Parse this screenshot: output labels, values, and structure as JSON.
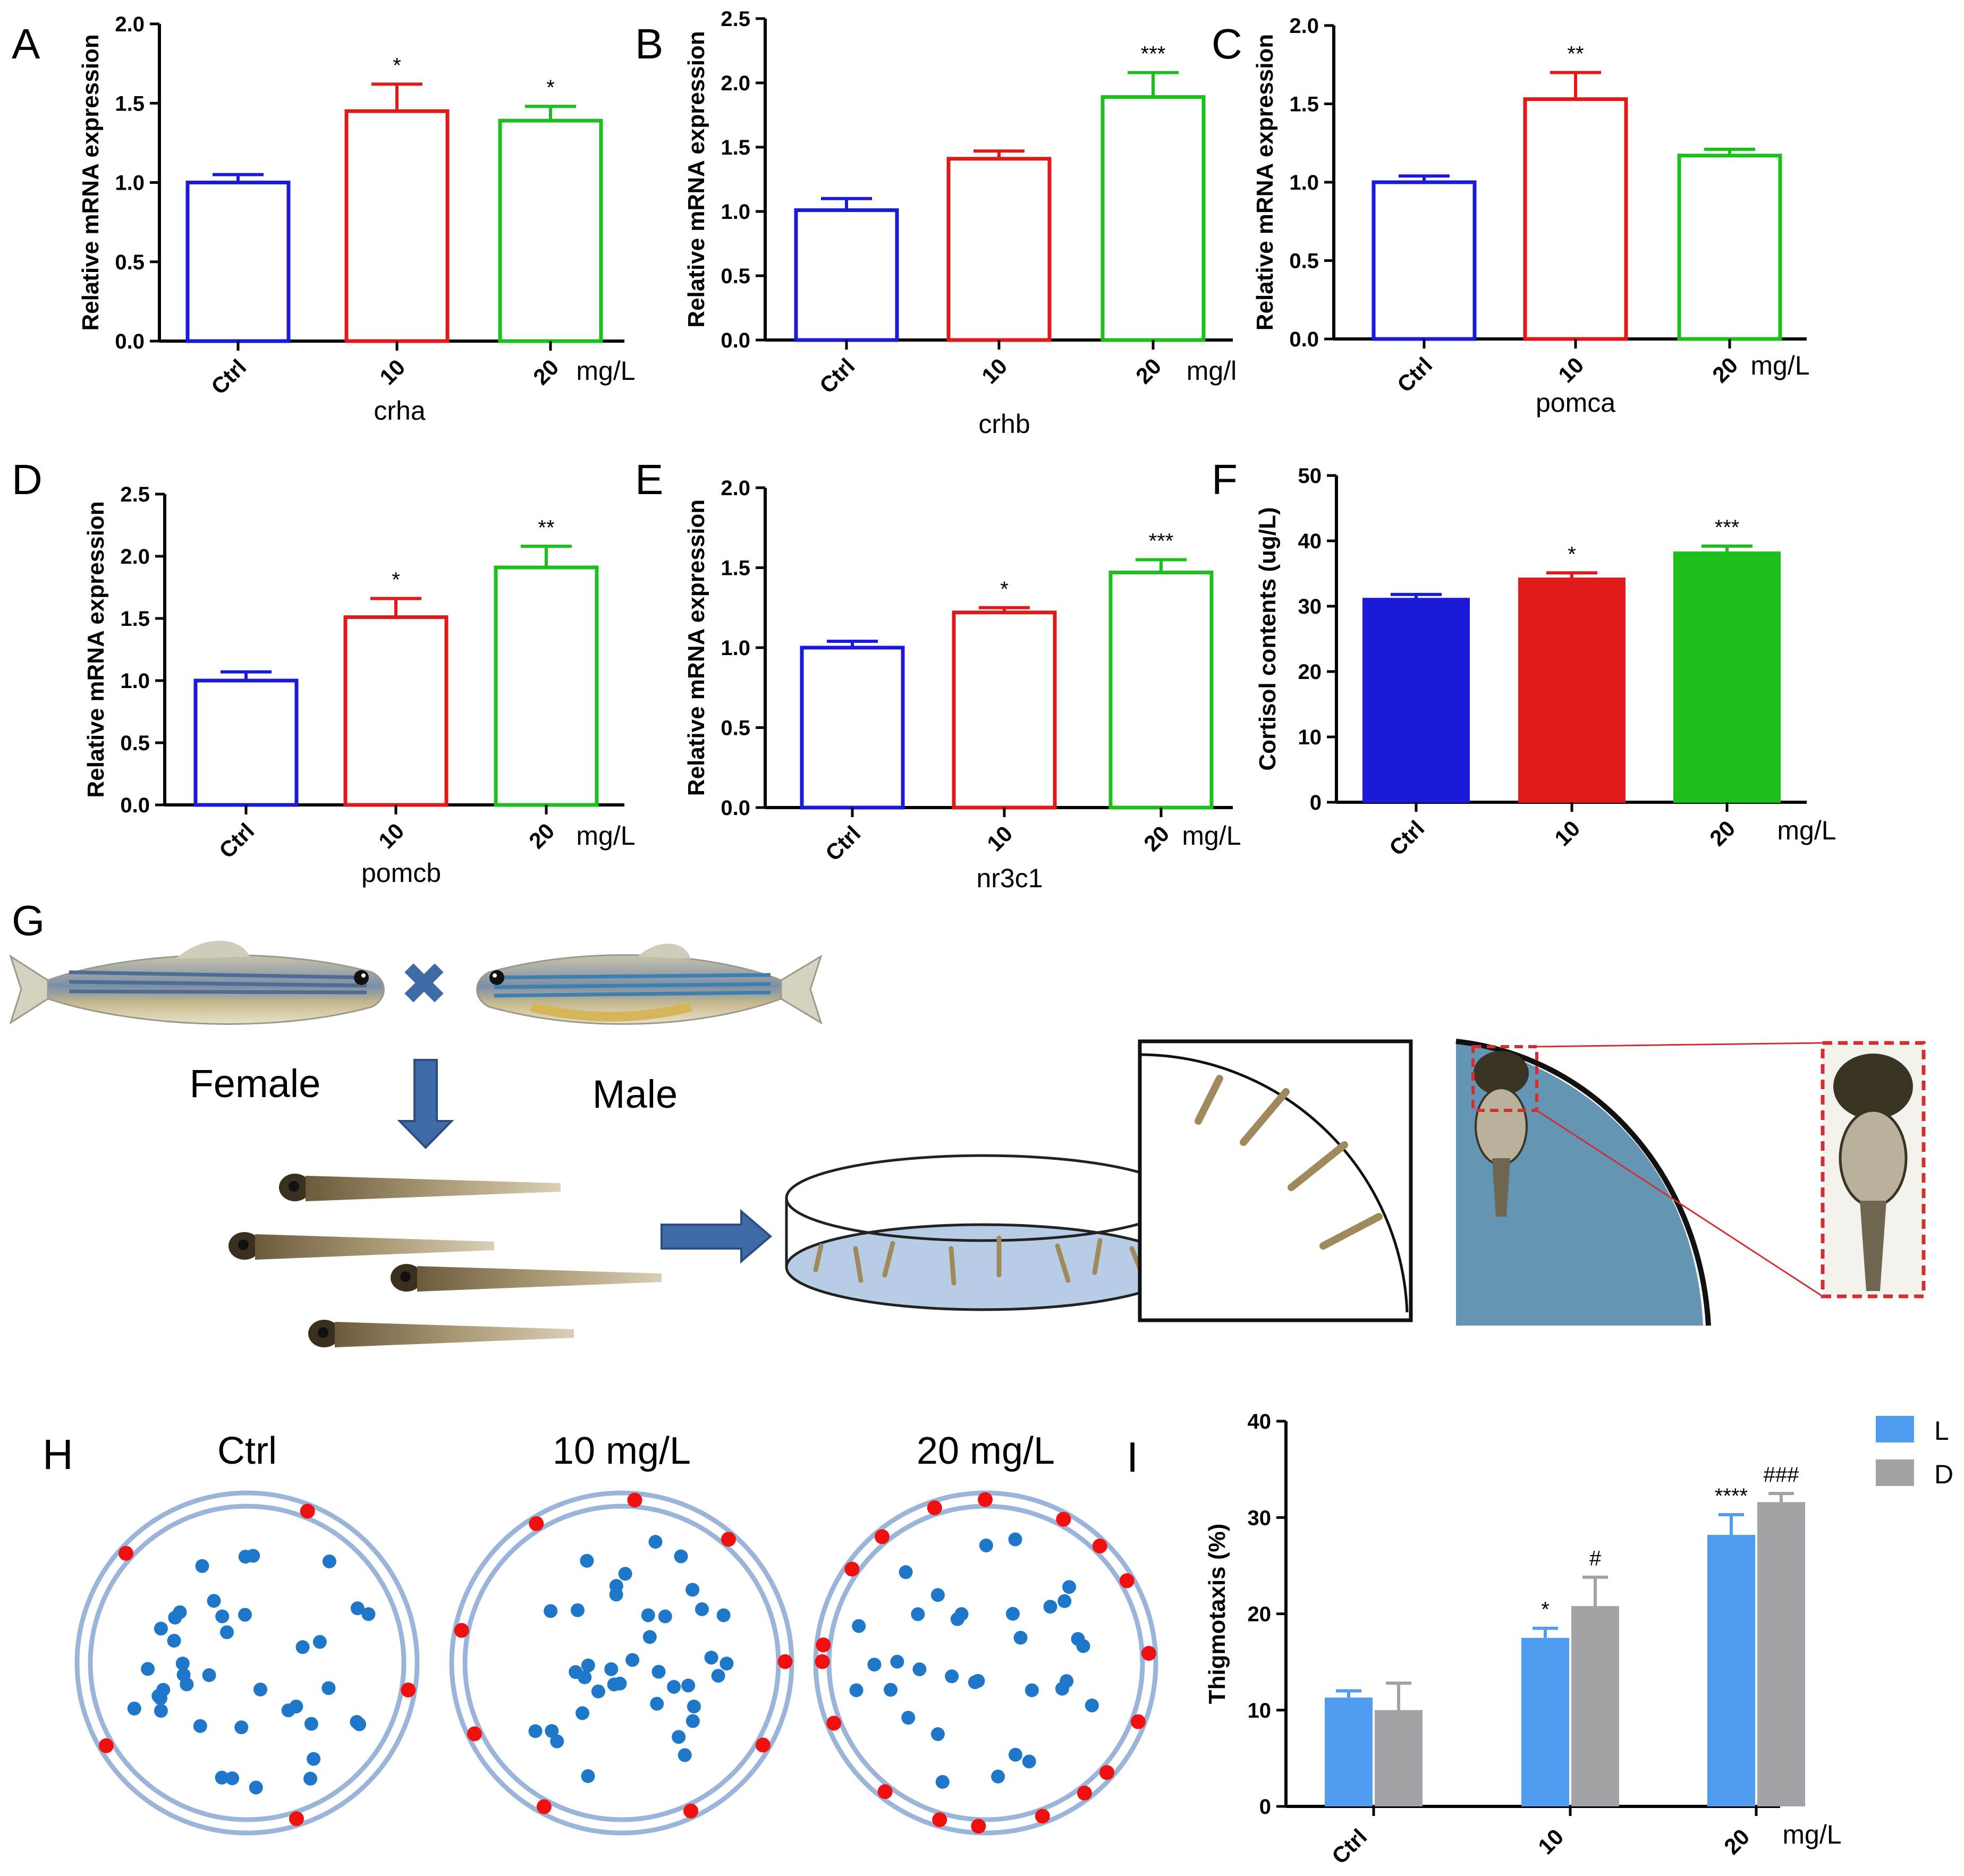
{
  "colors": {
    "ctrl": "#1a1ad8",
    "dose10": "#e01a1a",
    "dose20": "#1cbf1c",
    "light": "#4f9df0",
    "dark": "#a2a2a7",
    "dish": "#9ab5d9",
    "blue_dot": "#1f77c9",
    "red_dot": "#f01010",
    "arrow": "#3e6ba8",
    "axis": "#000000"
  },
  "chart_data": [
    {
      "panel": "A",
      "type": "bar",
      "style": "outline",
      "gene": "crha",
      "ylabel": "Relative mRNA expression",
      "unit": "mg/L",
      "categories": [
        "Ctrl",
        "10",
        "20"
      ],
      "values": [
        1.0,
        1.45,
        1.39
      ],
      "errors": [
        0.05,
        0.17,
        0.09
      ],
      "sig": [
        "",
        "*",
        "*"
      ],
      "ylim": [
        0,
        2.0
      ],
      "yticks": [
        "0.0",
        "0.5",
        "1.0",
        "1.5",
        "2.0"
      ]
    },
    {
      "panel": "B",
      "type": "bar",
      "style": "outline",
      "gene": "crhb",
      "ylabel": "Relative mRNA expression",
      "unit": "mg/l",
      "categories": [
        "Ctrl",
        "10",
        "20"
      ],
      "values": [
        1.01,
        1.41,
        1.89
      ],
      "errors": [
        0.09,
        0.06,
        0.19
      ],
      "sig": [
        "",
        "",
        "***"
      ],
      "ylim": [
        0,
        2.5
      ],
      "yticks": [
        "0.0",
        "0.5",
        "1.0",
        "1.5",
        "2.0",
        "2.5"
      ]
    },
    {
      "panel": "C",
      "type": "bar",
      "style": "outline",
      "gene": "pomca",
      "ylabel": "Relative mRNA expression",
      "unit": "mg/L",
      "categories": [
        "Ctrl",
        "10",
        "20"
      ],
      "values": [
        1.0,
        1.53,
        1.17
      ],
      "errors": [
        0.04,
        0.17,
        0.04
      ],
      "sig": [
        "",
        "**",
        ""
      ],
      "ylim": [
        0,
        2.0
      ],
      "yticks": [
        "0.0",
        "0.5",
        "1.0",
        "1.5",
        "2.0"
      ]
    },
    {
      "panel": "D",
      "type": "bar",
      "style": "outline",
      "gene": "pomcb",
      "ylabel": "Relative mRNA expression",
      "unit": "mg/L",
      "categories": [
        "Ctrl",
        "10",
        "20"
      ],
      "values": [
        1.0,
        1.51,
        1.91
      ],
      "errors": [
        0.07,
        0.15,
        0.17
      ],
      "sig": [
        "",
        "*",
        "**"
      ],
      "ylim": [
        0,
        2.5
      ],
      "yticks": [
        "0.0",
        "0.5",
        "1.0",
        "1.5",
        "2.0",
        "2.5"
      ]
    },
    {
      "panel": "E",
      "type": "bar",
      "style": "outline",
      "gene": "nr3c1",
      "ylabel": "Relative mRNA expression",
      "unit": "mg/L",
      "categories": [
        "Ctrl",
        "10",
        "20"
      ],
      "values": [
        1.0,
        1.22,
        1.47
      ],
      "errors": [
        0.04,
        0.03,
        0.08
      ],
      "sig": [
        "",
        "*",
        "***"
      ],
      "ylim": [
        0,
        2.0
      ],
      "yticks": [
        "0.0",
        "0.5",
        "1.0",
        "1.5",
        "2.0"
      ]
    },
    {
      "panel": "F",
      "type": "bar",
      "style": "filled",
      "gene": "",
      "ylabel": "Cortisol contents (ug/L)",
      "unit": "mg/L",
      "categories": [
        "Ctrl",
        "10",
        "20"
      ],
      "values": [
        31.2,
        34.3,
        38.3
      ],
      "errors": [
        0.6,
        0.8,
        0.9
      ],
      "sig": [
        "",
        "*",
        "***"
      ],
      "ylim": [
        0,
        50
      ],
      "yticks": [
        "0",
        "10",
        "20",
        "30",
        "40",
        "50"
      ]
    },
    {
      "panel": "I",
      "type": "bar",
      "style": "grouped",
      "ylabel": "Thigmotaxis (%)",
      "unit": "mg/L",
      "categories": [
        "Ctrl",
        "10",
        "20"
      ],
      "series": [
        {
          "name": "L",
          "values": [
            11.3,
            17.5,
            28.2
          ],
          "errors": [
            0.7,
            1.0,
            2.1
          ],
          "sig": [
            "",
            "*",
            "****"
          ]
        },
        {
          "name": "D",
          "values": [
            10.0,
            20.8,
            31.6
          ],
          "errors": [
            2.8,
            3.0,
            0.9
          ],
          "sig": [
            "",
            "#",
            "###"
          ]
        }
      ],
      "ylim": [
        0,
        40
      ],
      "yticks": [
        "0",
        "10",
        "20",
        "30",
        "40"
      ]
    }
  ],
  "panel_g": {
    "label": "G",
    "female_label": "Female",
    "male_label": "Male",
    "cross_symbol": "✖"
  },
  "panel_h": {
    "label": "H",
    "dishes": [
      {
        "title": "Ctrl",
        "center_count": 40,
        "edge_count": 5
      },
      {
        "title": "10 mg/L",
        "center_count": 38,
        "edge_count": 9
      },
      {
        "title": "20 mg/L",
        "center_count": 33,
        "edge_count": 18
      }
    ]
  }
}
